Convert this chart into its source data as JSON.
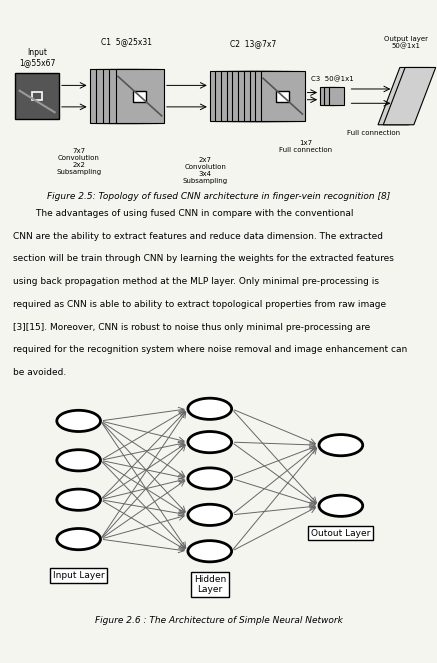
{
  "fig_caption_top": "Figure 2.5: Topology of fused CNN architecture in finger-vein recognition [8]",
  "para_lines": [
    "        The advantages of using fused CNN in compare with the conventional",
    "CNN are the ability to extract features and reduce data dimension. The extracted",
    "section will be train through CNN by learning the weights for the extracted features",
    "using back propagation method at the MLP layer. Only minimal pre-processing is",
    "required as CNN is able to ability to extract topological properties from raw image",
    "[3][15]. Moreover, CNN is robust to noise thus only minimal pre-processing are",
    "required for the recognition system where noise removal and image enhancement can",
    "be avoided."
  ],
  "fig_caption_bottom": "Figure 2.6 : The Architecture of Simple Neural Network",
  "bg_color": "#f5f5f0",
  "input_label": "Input\n1@55x67",
  "c1_label": "C1  5@25x31",
  "c2_label": "C2  13@7x7",
  "c3_label": "C3  50@1x1",
  "output_label": "Output layer\n50@1x1",
  "conv1_label": "7x7\nConvolution\n2x2\nSubsampling",
  "conv2_label": "2x7\nConvolution\n3x4\nSubsampling",
  "fc1_label": "1x7\nFull connection",
  "fc2_label": "Full connection",
  "input_layer_label": "Input Layer",
  "hidden_layer_label": "Hidden\nLayer",
  "output_layer_label": "Outout Layer"
}
